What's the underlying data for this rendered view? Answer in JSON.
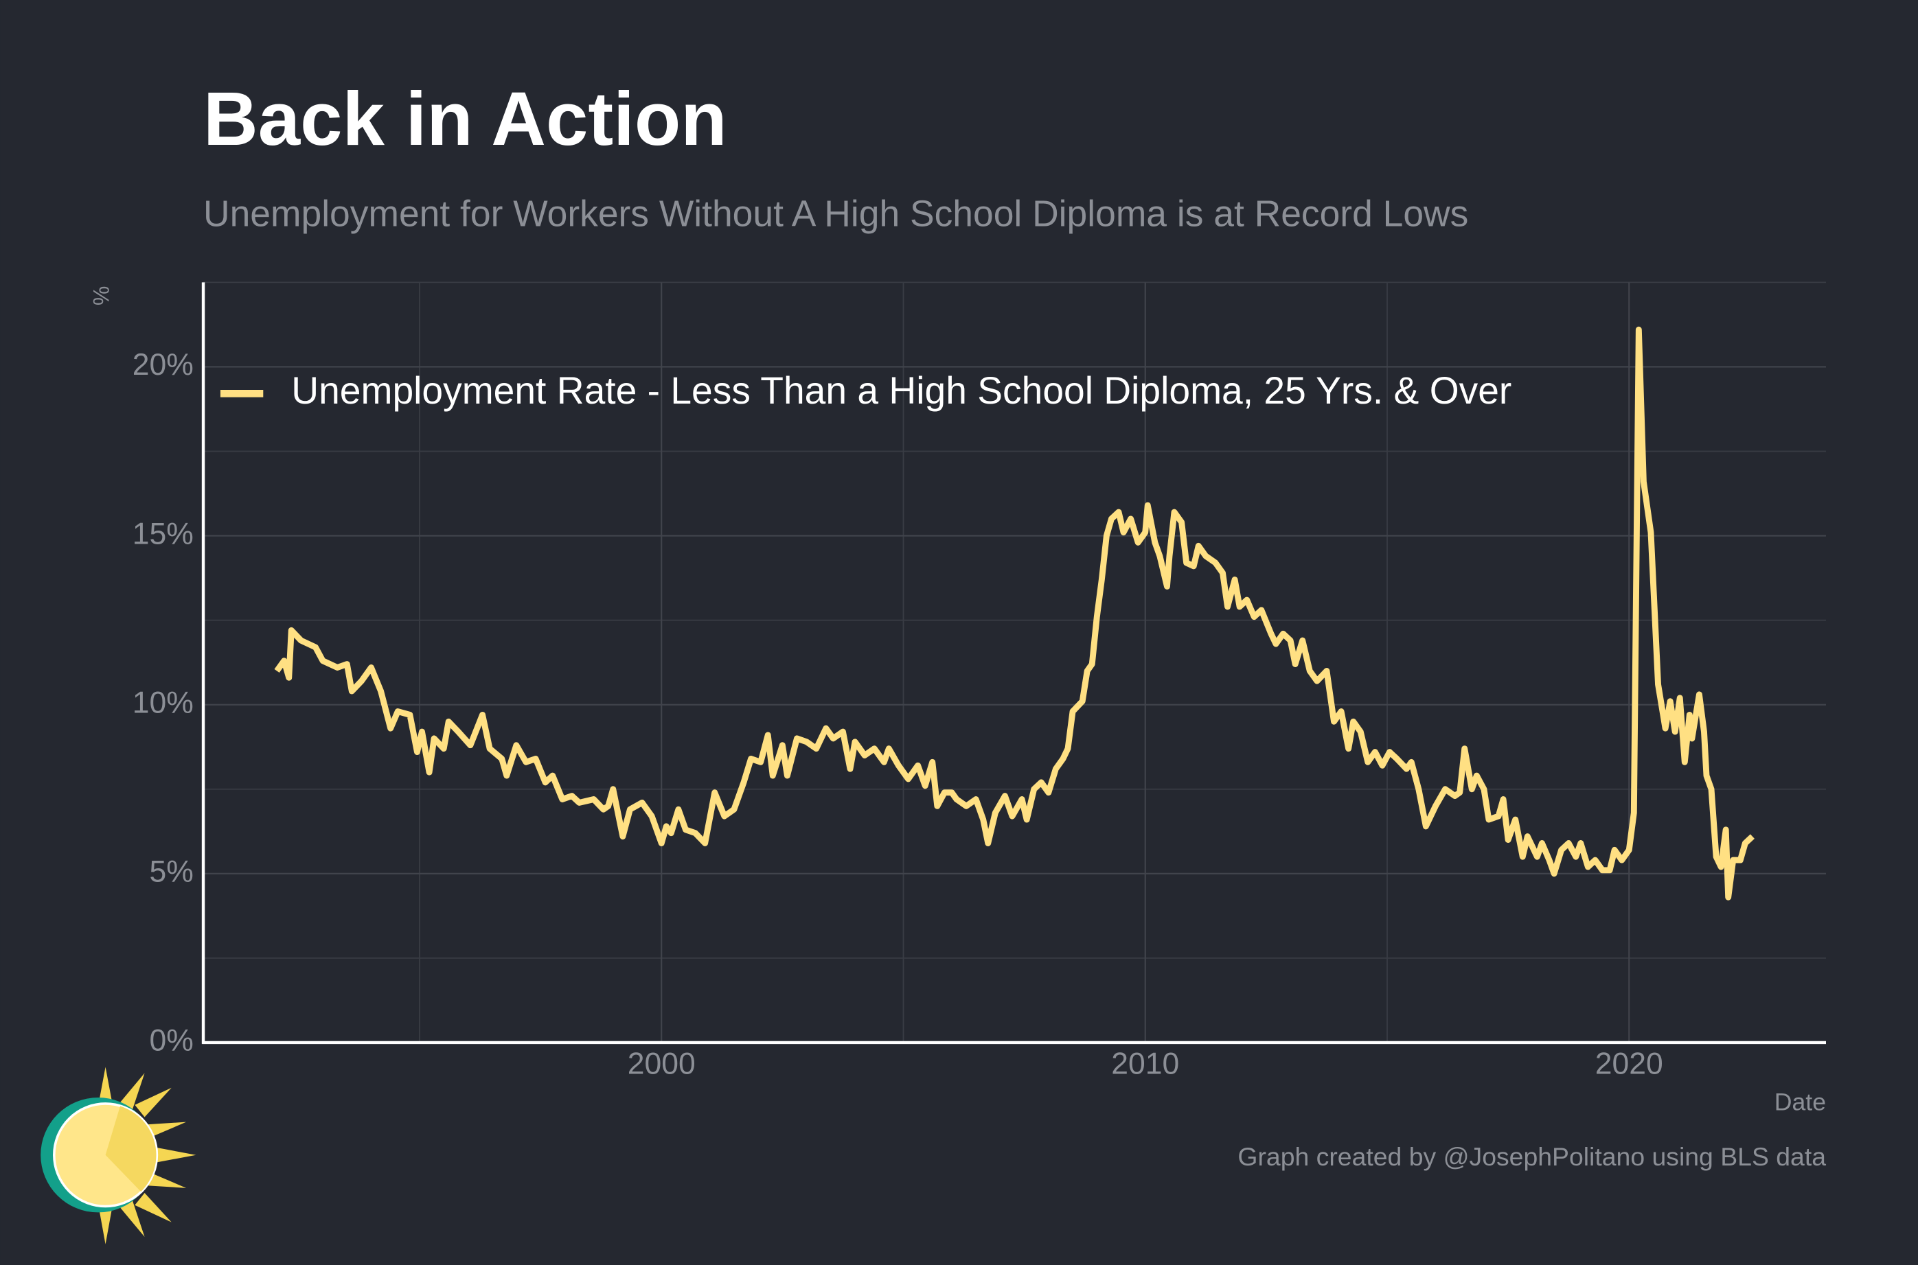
{
  "chart_data": {
    "type": "line",
    "title": "Back in Action",
    "subtitle": "Unemployment for Workers Without A High School Diploma is at Record Lows",
    "y_label": "%",
    "x_label": "Date",
    "caption": "Graph created by @JosephPolitano using BLS data",
    "x": [
      1992.05,
      1992.2,
      1992.3,
      1992.35,
      1992.55,
      1992.85,
      1993.0,
      1993.3,
      1993.5,
      1993.6,
      1993.8,
      1994.0,
      1994.2,
      1994.4,
      1994.55,
      1994.8,
      1994.95,
      1995.05,
      1995.2,
      1995.3,
      1995.5,
      1995.6,
      1995.8,
      1996.05,
      1996.3,
      1996.45,
      1996.7,
      1996.8,
      1997.0,
      1997.2,
      1997.4,
      1997.6,
      1997.75,
      1997.95,
      1998.15,
      1998.3,
      1998.6,
      1998.8,
      1998.9,
      1999.0,
      1999.2,
      1999.35,
      1999.6,
      1999.8,
      2000.0,
      2000.1,
      2000.2,
      2000.35,
      2000.5,
      2000.7,
      2000.9,
      2001.1,
      2001.3,
      2001.5,
      2001.7,
      2001.85,
      2002.05,
      2002.2,
      2002.3,
      2002.5,
      2002.6,
      2002.8,
      2003.0,
      2003.2,
      2003.4,
      2003.55,
      2003.75,
      2003.9,
      2004.0,
      2004.2,
      2004.4,
      2004.6,
      2004.7,
      2004.9,
      2005.1,
      2005.3,
      2005.45,
      2005.6,
      2005.7,
      2005.85,
      2006.0,
      2006.1,
      2006.3,
      2006.5,
      2006.65,
      2006.75,
      2006.9,
      2007.1,
      2007.25,
      2007.45,
      2007.55,
      2007.7,
      2007.85,
      2008.0,
      2008.15,
      2008.3,
      2008.4,
      2008.5,
      2008.7,
      2008.8,
      2008.9,
      2009.0,
      2009.1,
      2009.2,
      2009.3,
      2009.45,
      2009.55,
      2009.7,
      2009.85,
      2010.0,
      2010.05,
      2010.2,
      2010.3,
      2010.45,
      2010.5,
      2010.6,
      2010.75,
      2010.85,
      2011.0,
      2011.1,
      2011.25,
      2011.45,
      2011.6,
      2011.7,
      2011.85,
      2011.95,
      2012.1,
      2012.25,
      2012.4,
      2012.6,
      2012.7,
      2012.85,
      2013.0,
      2013.1,
      2013.25,
      2013.4,
      2013.55,
      2013.75,
      2013.9,
      2014.05,
      2014.2,
      2014.3,
      2014.45,
      2014.6,
      2014.75,
      2014.9,
      2015.05,
      2015.2,
      2015.4,
      2015.5,
      2015.65,
      2015.8,
      2016.0,
      2016.2,
      2016.4,
      2016.5,
      2016.6,
      2016.75,
      2016.85,
      2017.0,
      2017.1,
      2017.3,
      2017.4,
      2017.5,
      2017.65,
      2017.8,
      2017.9,
      2018.1,
      2018.2,
      2018.35,
      2018.45,
      2018.6,
      2018.75,
      2018.9,
      2019.0,
      2019.15,
      2019.3,
      2019.45,
      2019.6,
      2019.7,
      2019.85,
      2020.0,
      2020.1,
      2020.2,
      2020.3,
      2020.45,
      2020.6,
      2020.75,
      2020.85,
      2020.95,
      2021.05,
      2021.15,
      2021.25,
      2021.3,
      2021.45,
      2021.55,
      2021.6,
      2021.7,
      2021.8,
      2021.9,
      2022.0,
      2022.05,
      2022.15,
      2022.3,
      2022.4,
      2022.55
    ],
    "series": [
      {
        "name": "Unemployment Rate - Less Than a High School Diploma, 25 Yrs. & Over",
        "color": "#ffe083",
        "values": [
          11.0,
          11.3,
          10.8,
          12.2,
          11.9,
          11.7,
          11.3,
          11.1,
          11.2,
          10.4,
          10.7,
          11.1,
          10.4,
          9.3,
          9.8,
          9.7,
          8.6,
          9.2,
          8.0,
          9.0,
          8.7,
          9.5,
          9.2,
          8.8,
          9.7,
          8.7,
          8.4,
          7.9,
          8.8,
          8.3,
          8.4,
          7.7,
          7.9,
          7.2,
          7.3,
          7.1,
          7.2,
          6.9,
          7.0,
          7.5,
          6.1,
          6.9,
          7.1,
          6.7,
          5.9,
          6.4,
          6.2,
          6.9,
          6.3,
          6.2,
          5.9,
          7.4,
          6.7,
          6.9,
          7.7,
          8.4,
          8.3,
          9.1,
          7.9,
          8.8,
          7.9,
          9.0,
          8.9,
          8.7,
          9.3,
          9.0,
          9.2,
          8.1,
          8.9,
          8.5,
          8.7,
          8.3,
          8.7,
          8.2,
          7.8,
          8.2,
          7.6,
          8.3,
          7.0,
          7.4,
          7.4,
          7.2,
          7.0,
          7.2,
          6.6,
          5.9,
          6.8,
          7.3,
          6.7,
          7.2,
          6.6,
          7.5,
          7.7,
          7.4,
          8.1,
          8.4,
          8.7,
          9.8,
          10.1,
          11.0,
          11.2,
          12.6,
          13.7,
          15.0,
          15.5,
          15.7,
          15.1,
          15.5,
          14.8,
          15.1,
          15.9,
          14.8,
          14.4,
          13.5,
          14.4,
          15.7,
          15.4,
          14.2,
          14.1,
          14.7,
          14.4,
          14.2,
          13.9,
          12.9,
          13.7,
          12.9,
          13.1,
          12.6,
          12.8,
          12.1,
          11.8,
          12.1,
          11.9,
          11.2,
          11.9,
          11.0,
          10.7,
          11.0,
          9.5,
          9.8,
          8.7,
          9.5,
          9.2,
          8.3,
          8.6,
          8.2,
          8.6,
          8.4,
          8.1,
          8.3,
          7.5,
          6.4,
          7.0,
          7.5,
          7.3,
          7.4,
          8.7,
          7.5,
          7.9,
          7.5,
          6.6,
          6.7,
          7.2,
          6.0,
          6.6,
          5.5,
          6.1,
          5.5,
          5.9,
          5.4,
          5.0,
          5.7,
          5.9,
          5.5,
          5.9,
          5.2,
          5.4,
          5.1,
          5.1,
          5.7,
          5.4,
          5.7,
          6.8,
          21.1,
          16.6,
          15.1,
          10.6,
          9.3,
          10.1,
          9.2,
          10.2,
          8.3,
          9.7,
          9.0,
          10.3,
          9.2,
          7.9,
          7.5,
          5.5,
          5.2,
          6.3,
          4.3,
          5.4,
          5.4,
          5.9,
          6.1
        ]
      }
    ],
    "xlim": [
      1990.53,
      2024.07
    ],
    "xticks": [
      2000,
      2010,
      2020
    ],
    "x_minor_ticks": [
      1995,
      2005,
      2015
    ],
    "ylim": [
      0,
      22.5
    ],
    "yticks": [
      {
        "value": 0,
        "label": "0%"
      },
      {
        "value": 5,
        "label": "5%"
      },
      {
        "value": 10,
        "label": "10%"
      },
      {
        "value": 15,
        "label": "15%"
      },
      {
        "value": 20,
        "label": "20%"
      }
    ],
    "y_minor_ticks": [
      2.5,
      7.5,
      12.5,
      17.5,
      22.5
    ],
    "grid": true,
    "legend": "top-left"
  }
}
